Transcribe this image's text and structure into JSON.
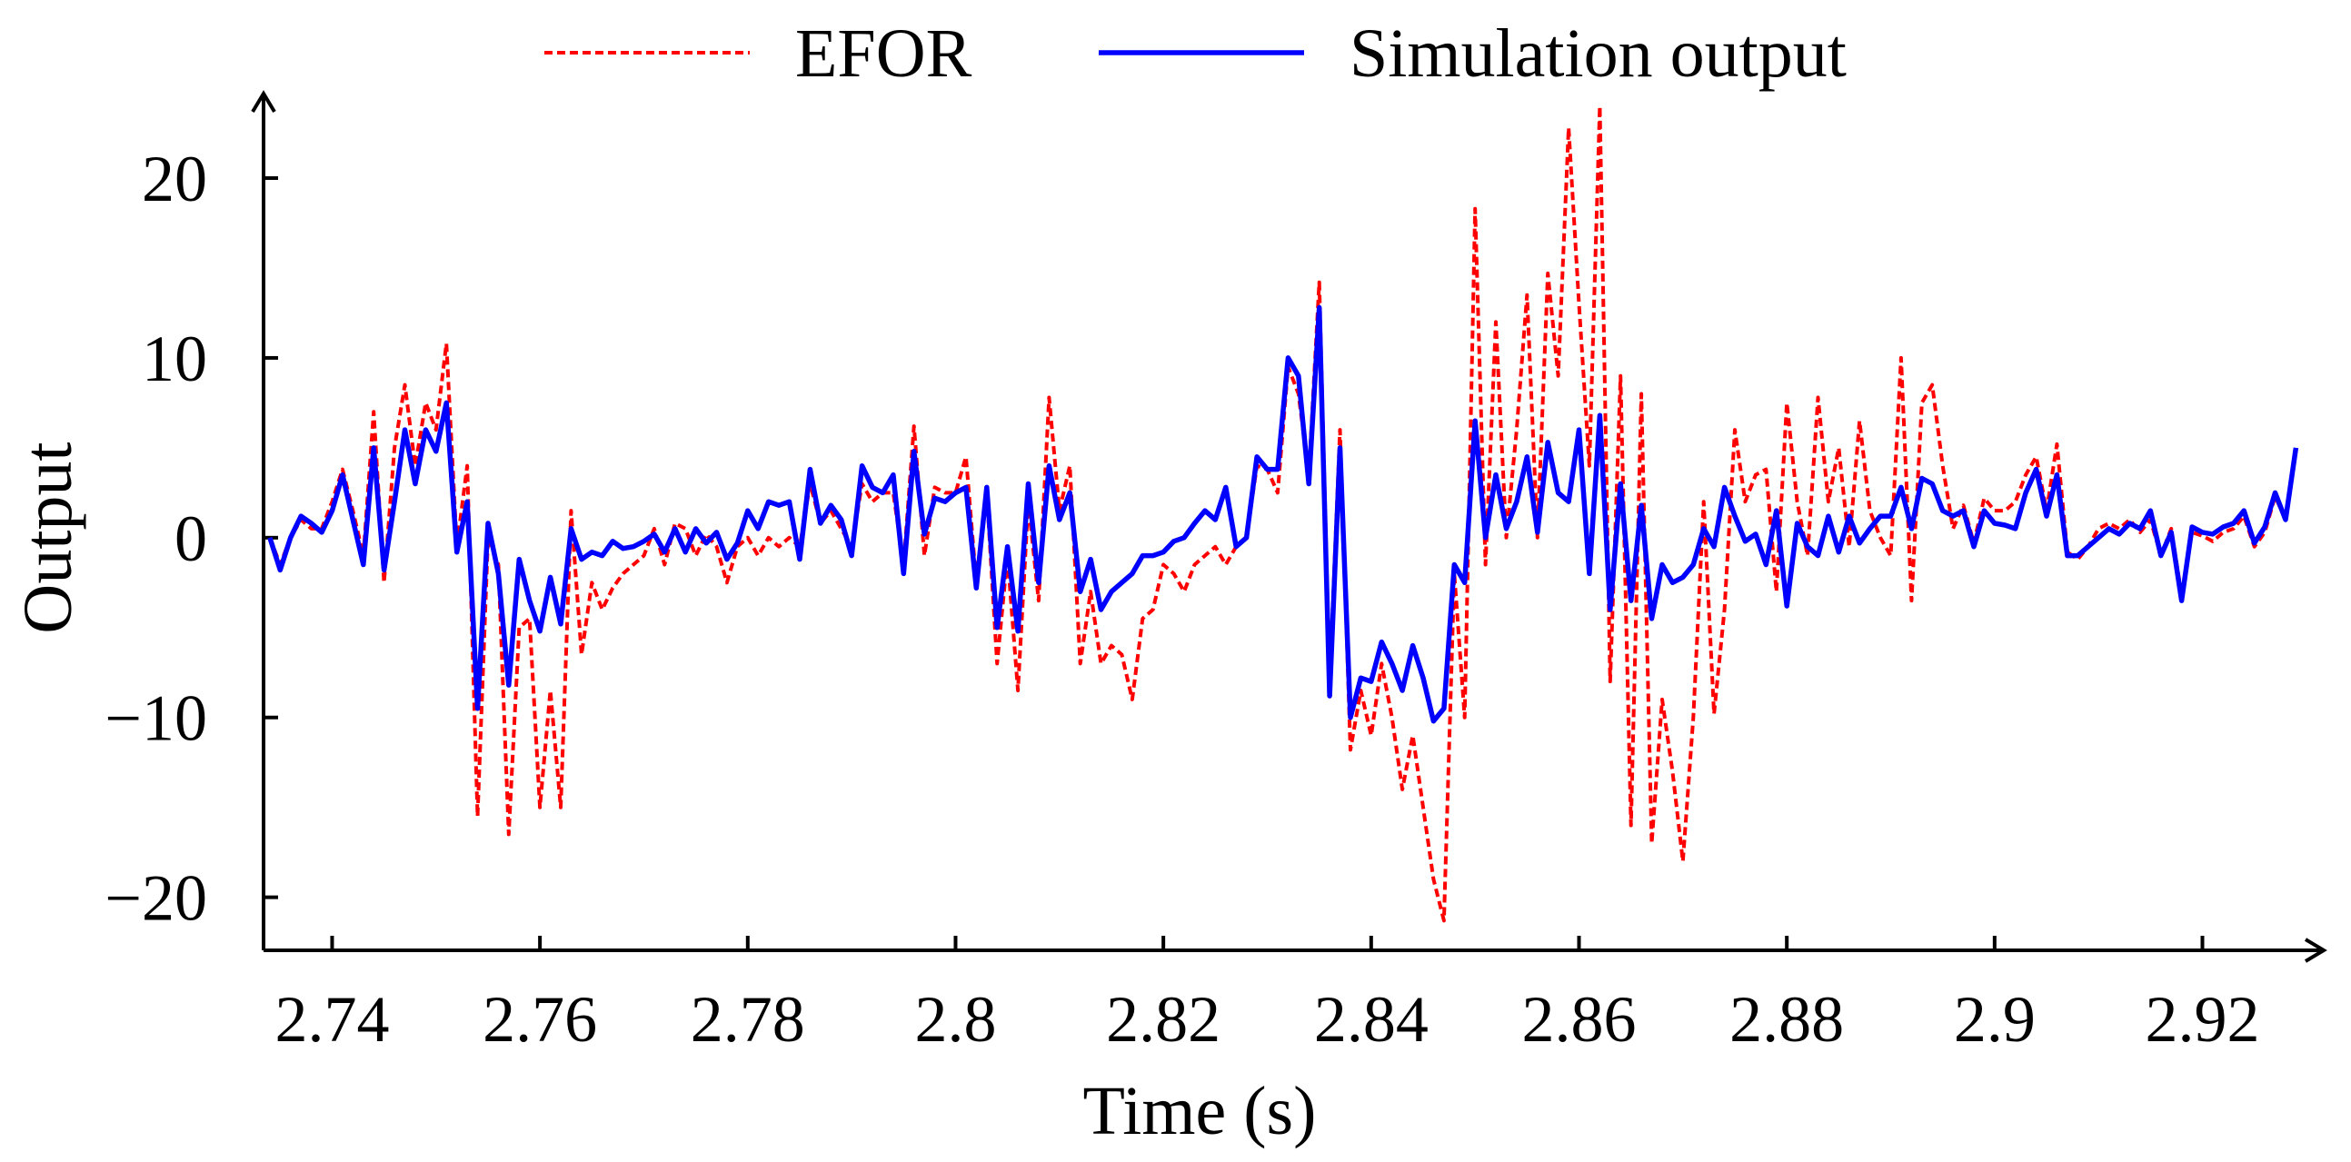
{
  "chart_data": {
    "type": "line",
    "xlabel": "Time (s)",
    "ylabel": "Output",
    "xlim": [
      2.7334,
      2.9315
    ],
    "ylim": [
      -22.95,
      24.6
    ],
    "xticks": [
      2.74,
      2.76,
      2.78,
      2.8,
      2.82,
      2.84,
      2.86,
      2.88,
      2.9,
      2.92
    ],
    "yticks": [
      {
        "value": -20,
        "label": "−20"
      },
      {
        "value": -10,
        "label": "−10"
      },
      0,
      10,
      20
    ],
    "x": [
      2.734,
      2.735,
      2.736,
      2.737,
      2.738,
      2.739,
      2.74,
      2.741,
      2.742,
      2.743,
      2.744,
      2.745,
      2.746,
      2.747,
      2.748,
      2.749,
      2.75,
      2.751,
      2.752,
      2.753,
      2.754,
      2.755,
      2.756,
      2.757,
      2.758,
      2.759,
      2.76,
      2.761,
      2.762,
      2.763,
      2.764,
      2.765,
      2.766,
      2.767,
      2.768,
      2.769,
      2.77,
      2.771,
      2.772,
      2.773,
      2.774,
      2.775,
      2.776,
      2.777,
      2.778,
      2.779,
      2.78,
      2.781,
      2.782,
      2.783,
      2.784,
      2.785,
      2.786,
      2.787,
      2.788,
      2.789,
      2.79,
      2.791,
      2.792,
      2.793,
      2.794,
      2.795,
      2.796,
      2.797,
      2.798,
      2.799,
      2.8,
      2.801,
      2.802,
      2.803,
      2.804,
      2.805,
      2.806,
      2.807,
      2.808,
      2.809,
      2.81,
      2.811,
      2.812,
      2.813,
      2.814,
      2.815,
      2.816,
      2.817,
      2.818,
      2.819,
      2.82,
      2.821,
      2.822,
      2.823,
      2.824,
      2.825,
      2.826,
      2.827,
      2.828,
      2.829,
      2.83,
      2.831,
      2.832,
      2.833,
      2.834,
      2.835,
      2.836,
      2.837,
      2.838,
      2.839,
      2.84,
      2.841,
      2.842,
      2.843,
      2.844,
      2.845,
      2.846,
      2.847,
      2.848,
      2.849,
      2.85,
      2.851,
      2.852,
      2.853,
      2.854,
      2.855,
      2.856,
      2.857,
      2.858,
      2.859,
      2.86,
      2.861,
      2.862,
      2.863,
      2.864,
      2.865,
      2.866,
      2.867,
      2.868,
      2.869,
      2.87,
      2.871,
      2.872,
      2.873,
      2.874,
      2.875,
      2.876,
      2.877,
      2.878,
      2.879,
      2.88,
      2.881,
      2.882,
      2.883,
      2.884,
      2.885,
      2.886,
      2.887,
      2.888,
      2.889,
      2.89,
      2.891,
      2.892,
      2.893,
      2.894,
      2.895,
      2.896,
      2.897,
      2.898,
      2.899,
      2.9,
      2.901,
      2.902,
      2.903,
      2.904,
      2.905,
      2.906,
      2.907,
      2.908,
      2.909,
      2.91,
      2.911,
      2.912,
      2.913,
      2.914,
      2.915,
      2.916,
      2.917,
      2.918,
      2.919,
      2.92,
      2.921,
      2.922,
      2.923,
      2.924,
      2.925,
      2.926,
      2.927,
      2.928,
      2.929
    ],
    "series": [
      {
        "name": "EFOR",
        "color": "#ff0000",
        "dashed": true,
        "values": [
          0,
          -1.5,
          0,
          1,
          0.5,
          0.5,
          2,
          3.8,
          1.5,
          -1,
          7,
          -2.5,
          5,
          8.5,
          4,
          7.5,
          6,
          10.8,
          -0.5,
          4,
          -15.5,
          0,
          -1.5,
          -16.5,
          -5,
          -4.5,
          -15,
          -8.5,
          -15,
          1.5,
          -6.5,
          -2.5,
          -4,
          -2.8,
          -2,
          -1.5,
          -1,
          0.5,
          -1.5,
          0.8,
          0.5,
          -1,
          0.2,
          -0.5,
          -2.5,
          -0.5,
          0,
          -1,
          0,
          -0.5,
          0,
          -0.5,
          3,
          0.8,
          1.5,
          0.5,
          -0.5,
          3,
          2,
          2.5,
          2.5,
          -1.5,
          6.2,
          -1,
          2.8,
          2.5,
          2.5,
          4.5,
          -2.5,
          2.5,
          -7,
          -1,
          -8.5,
          2,
          -3.5,
          7.8,
          1.5,
          4,
          -7,
          -3,
          -7,
          -6,
          -6.5,
          -9,
          -4.5,
          -4,
          -1.5,
          -2,
          -3,
          -1.5,
          -1,
          -0.5,
          -1.5,
          -0.5,
          0,
          4,
          3.8,
          2.5,
          9.5,
          8,
          3.5,
          14.2,
          -8,
          6,
          -11.8,
          -8.5,
          -11,
          -7,
          -10,
          -14,
          -11,
          -15,
          -19,
          -21.3,
          -2,
          -10,
          18.3,
          -1.5,
          12,
          0,
          6,
          13.5,
          0,
          14.7,
          9,
          22.8,
          13,
          4,
          24,
          -8,
          9,
          -16,
          8,
          -17,
          -9,
          -13,
          -18,
          -10,
          2,
          -9.8,
          -4,
          6,
          2,
          3.5,
          3.8,
          -3,
          7.5,
          2,
          -1,
          7.8,
          2,
          5,
          -0.5,
          6.5,
          1.5,
          0,
          -1,
          10,
          -3.5,
          7.5,
          8.5,
          4,
          0.5,
          1.8,
          -0.3,
          2.2,
          1.5,
          1.5,
          2,
          3.5,
          4.5,
          1.5,
          5.2,
          -0.8,
          -1.2,
          -0.5,
          0.5,
          0.8,
          0.5,
          1,
          0.3,
          1,
          -1,
          0.5,
          -3.2,
          0.3,
          0.1,
          -0.2,
          0.3,
          0.5,
          1.2,
          -0.5,
          0.3,
          2.3,
          1,
          4.8
        ]
      },
      {
        "name": "Simulation output",
        "color": "#0000ff",
        "dashed": false,
        "values": [
          0,
          -1.8,
          0,
          1.2,
          0.8,
          0.3,
          1.5,
          3.5,
          1,
          -1.5,
          5,
          -1.8,
          2,
          6,
          3,
          6,
          4.8,
          7.5,
          -0.8,
          2,
          -9.5,
          0.8,
          -2,
          -8.2,
          -1.2,
          -3.5,
          -5.2,
          -2.2,
          -4.8,
          0.5,
          -1.2,
          -0.8,
          -1,
          -0.2,
          -0.6,
          -0.5,
          -0.2,
          0.2,
          -0.8,
          0.5,
          -0.8,
          0.5,
          -0.3,
          0.3,
          -1.2,
          -0.3,
          1.5,
          0.5,
          2,
          1.8,
          2,
          -1.2,
          3.8,
          0.8,
          1.8,
          1,
          -1,
          4,
          2.8,
          2.5,
          3.5,
          -2,
          4.8,
          0.2,
          2.2,
          2,
          2.5,
          2.8,
          -2.8,
          2.8,
          -5,
          -0.5,
          -5.2,
          3,
          -2.5,
          4,
          1,
          2.5,
          -3,
          -1.2,
          -4,
          -3,
          -2.5,
          -2,
          -1,
          -1,
          -0.8,
          -0.2,
          0,
          0.8,
          1.5,
          1,
          2.8,
          -0.5,
          0,
          4.5,
          3.8,
          3.8,
          10,
          9,
          3,
          12.8,
          -8.8,
          5,
          -10,
          -7.8,
          -8,
          -5.8,
          -7,
          -8.5,
          -6,
          -7.8,
          -10.2,
          -9.5,
          -1.5,
          -2.5,
          6.5,
          0,
          3.5,
          0.5,
          2,
          4.5,
          0.3,
          5.3,
          2.5,
          2,
          6,
          -2,
          6.8,
          -4,
          3,
          -3.5,
          1.8,
          -4.5,
          -1.5,
          -2.5,
          -2.2,
          -1.5,
          0.5,
          -0.5,
          2.8,
          1.2,
          -0.2,
          0.2,
          -1.5,
          1.5,
          -3.8,
          0.8,
          -0.5,
          -1,
          1.2,
          -0.8,
          1.2,
          -0.3,
          0.5,
          1.2,
          1.2,
          2.8,
          0.5,
          3.3,
          3,
          1.5,
          1.2,
          1.5,
          -0.5,
          1.5,
          0.8,
          0.7,
          0.5,
          2.5,
          3.8,
          1.2,
          3.5,
          -1,
          -1,
          -0.5,
          0,
          0.5,
          0.2,
          0.8,
          0.5,
          1.5,
          -1,
          0.3,
          -3.5,
          0.6,
          0.3,
          0.2,
          0.6,
          0.8,
          1.5,
          -0.3,
          0.6,
          2.5,
          1,
          5
        ]
      }
    ]
  }
}
